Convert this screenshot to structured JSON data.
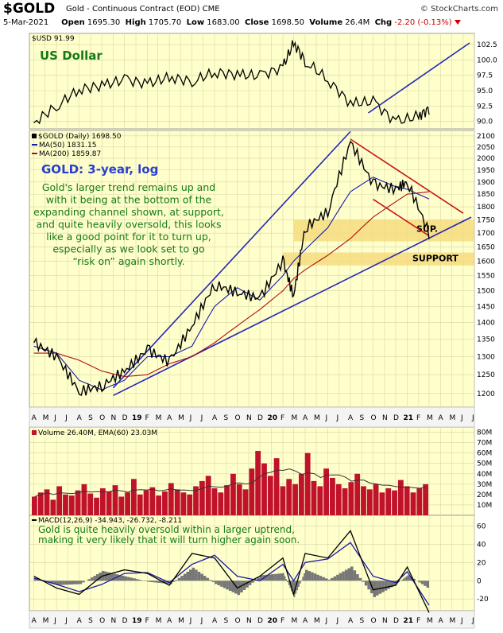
{
  "header": {
    "symbol": "$GOLD",
    "subtitle": "Gold - Continuous Contract (EOD)  CME",
    "brand": "© StockCharts.com",
    "date": "5-Mar-2021",
    "open_label": "Open",
    "open": "1695.30",
    "high_label": "High",
    "high": "1705.70",
    "low_label": "Low",
    "low": "1683.00",
    "close_label": "Close",
    "close": "1698.50",
    "volume_label": "Volume",
    "volume": "26.4M",
    "chg_label": "Chg",
    "chg": "-2.20 (-0.13%)"
  },
  "colors": {
    "panel_bg": "#ffffcc",
    "price": "#000000",
    "ma50": "#1a1aa6",
    "ma200": "#b01010",
    "channel": "#2727b3",
    "downtrend": "#cc1111",
    "support_band": "#f5d97a",
    "annotation_green": "#157a15",
    "annotation_blue": "#2a3fcf",
    "volume": "#c0122b",
    "macd_hist": "#777777"
  },
  "chart_data": [
    {
      "type": "line",
      "panel": "USD",
      "legend": "$USD 91.99",
      "annotation": "US Dollar",
      "y_ticks": [
        "102.5",
        "100.0",
        "97.5",
        "95.0",
        "92.5",
        "90.0"
      ],
      "ylim": [
        88.8,
        104.3
      ],
      "x": [
        "2018-04",
        "2018-06",
        "2018-08",
        "2018-10",
        "2018-12",
        "2019-02",
        "2019-04",
        "2019-06",
        "2019-08",
        "2019-10",
        "2019-12",
        "2020-02",
        "2020-03",
        "2020-04",
        "2020-06",
        "2020-08",
        "2020-10",
        "2020-12",
        "2021-02",
        "2021-03"
      ],
      "values": [
        89.8,
        92.5,
        95.2,
        95.8,
        96.8,
        96.1,
        97.2,
        96.5,
        98.0,
        97.6,
        97.4,
        98.8,
        102.8,
        99.8,
        96.8,
        92.9,
        93.2,
        89.9,
        90.9,
        92.0
      ]
    },
    {
      "type": "line",
      "panel": "GOLD",
      "legend": [
        "$GOLD (Daily) 1698.50",
        "MA(50) 1831.15",
        "MA(200) 1859.87"
      ],
      "annotation_title": "GOLD: 3-year, log",
      "annotation_text": [
        "Gold's larger trend remains up and",
        "with it being at the bottom of the",
        "expanding channel shown, at support,",
        "and quite heavily oversold, this looks",
        "like a good point for it to turn up,",
        "especially as we look set to go",
        "“risk on” again shortly."
      ],
      "support_labels": [
        "SUP.",
        "SUPPORT"
      ],
      "y_ticks": [
        "2100",
        "2050",
        "2000",
        "1950",
        "1900",
        "1850",
        "1800",
        "1750",
        "1700",
        "1650",
        "1600",
        "1550",
        "1500",
        "1450",
        "1400",
        "1350",
        "1300",
        "1250",
        "1200"
      ],
      "ylim": [
        1165,
        2125
      ],
      "scale": "log",
      "x": [
        "2018-04",
        "2018-06",
        "2018-08",
        "2018-10",
        "2018-12",
        "2019-02",
        "2019-04",
        "2019-06",
        "2019-08",
        "2019-10",
        "2019-12",
        "2020-02",
        "2020-03",
        "2020-04",
        "2020-06",
        "2020-08",
        "2020-10",
        "2020-12",
        "2021-01",
        "2021-03"
      ],
      "series": [
        {
          "name": "$GOLD",
          "values": [
            1340,
            1300,
            1205,
            1220,
            1260,
            1320,
            1285,
            1390,
            1520,
            1495,
            1475,
            1600,
            1480,
            1720,
            1780,
            2070,
            1890,
            1870,
            1900,
            1698
          ]
        },
        {
          "name": "MA(50)",
          "values": [
            1330,
            1310,
            1235,
            1210,
            1235,
            1300,
            1300,
            1330,
            1450,
            1510,
            1470,
            1550,
            1600,
            1640,
            1720,
            1860,
            1920,
            1880,
            1870,
            1831
          ]
        },
        {
          "name": "MA(200)",
          "values": [
            1310,
            1310,
            1290,
            1260,
            1245,
            1250,
            1280,
            1300,
            1340,
            1390,
            1440,
            1500,
            1540,
            1570,
            1620,
            1680,
            1760,
            1820,
            1850,
            1860
          ]
        }
      ]
    },
    {
      "type": "bar",
      "panel": "Volume",
      "legend": "Volume 26.40M, EMA(60) 23.03M",
      "y_ticks": [
        "80M",
        "70M",
        "60M",
        "50M",
        "40M",
        "30M",
        "20M",
        "10M"
      ],
      "ylim": [
        0,
        85
      ],
      "values_millions": [
        18,
        22,
        25,
        15,
        28,
        20,
        19,
        24,
        30,
        21,
        17,
        26,
        23,
        29,
        18,
        22,
        35,
        20,
        24,
        27,
        19,
        23,
        31,
        25,
        22,
        20,
        28,
        33,
        38,
        26,
        22,
        29,
        40,
        30,
        25,
        45,
        62,
        50,
        38,
        55,
        28,
        35,
        30,
        40,
        60,
        33,
        28,
        45,
        36,
        30,
        26,
        32,
        40,
        28,
        25,
        30,
        22,
        26,
        24,
        34,
        28,
        22,
        26,
        30
      ]
    },
    {
      "type": "line",
      "panel": "MACD",
      "legend": "MACD(12,26,9) -34.943, -26.732, -8.211",
      "annotation": [
        "Gold is quite heavily oversold within a larger uptrend,",
        "making it very likely that it will turn higher again soon."
      ],
      "y_ticks": [
        "60",
        "40",
        "20",
        "0",
        "-20"
      ],
      "ylim": [
        -33,
        72
      ],
      "x": [
        "2018-04",
        "2018-06",
        "2018-08",
        "2018-10",
        "2018-12",
        "2019-02",
        "2019-04",
        "2019-06",
        "2019-08",
        "2019-10",
        "2019-12",
        "2020-02",
        "2020-03",
        "2020-04",
        "2020-06",
        "2020-08",
        "2020-10",
        "2020-12",
        "2021-01",
        "2021-03"
      ],
      "series": [
        {
          "name": "MACD",
          "values": [
            5,
            -8,
            -15,
            5,
            12,
            8,
            -5,
            30,
            25,
            -8,
            5,
            25,
            -15,
            30,
            25,
            55,
            -10,
            -5,
            15,
            -35
          ]
        },
        {
          "name": "Signal",
          "values": [
            3,
            -4,
            -12,
            -4,
            8,
            9,
            -2,
            18,
            28,
            5,
            0,
            18,
            0,
            20,
            24,
            42,
            5,
            -2,
            10,
            -27
          ]
        }
      ]
    }
  ],
  "x_axis_labels": [
    "A",
    "M",
    "J",
    "J",
    "A",
    "S",
    "O",
    "N",
    "D",
    "19",
    "F",
    "M",
    "A",
    "M",
    "J",
    "J",
    "A",
    "S",
    "O",
    "N",
    "D",
    "20",
    "F",
    "M",
    "A",
    "M",
    "J",
    "J",
    "A",
    "S",
    "O",
    "N",
    "D",
    "21",
    "F",
    "M",
    "A",
    "M",
    "J",
    "J"
  ]
}
